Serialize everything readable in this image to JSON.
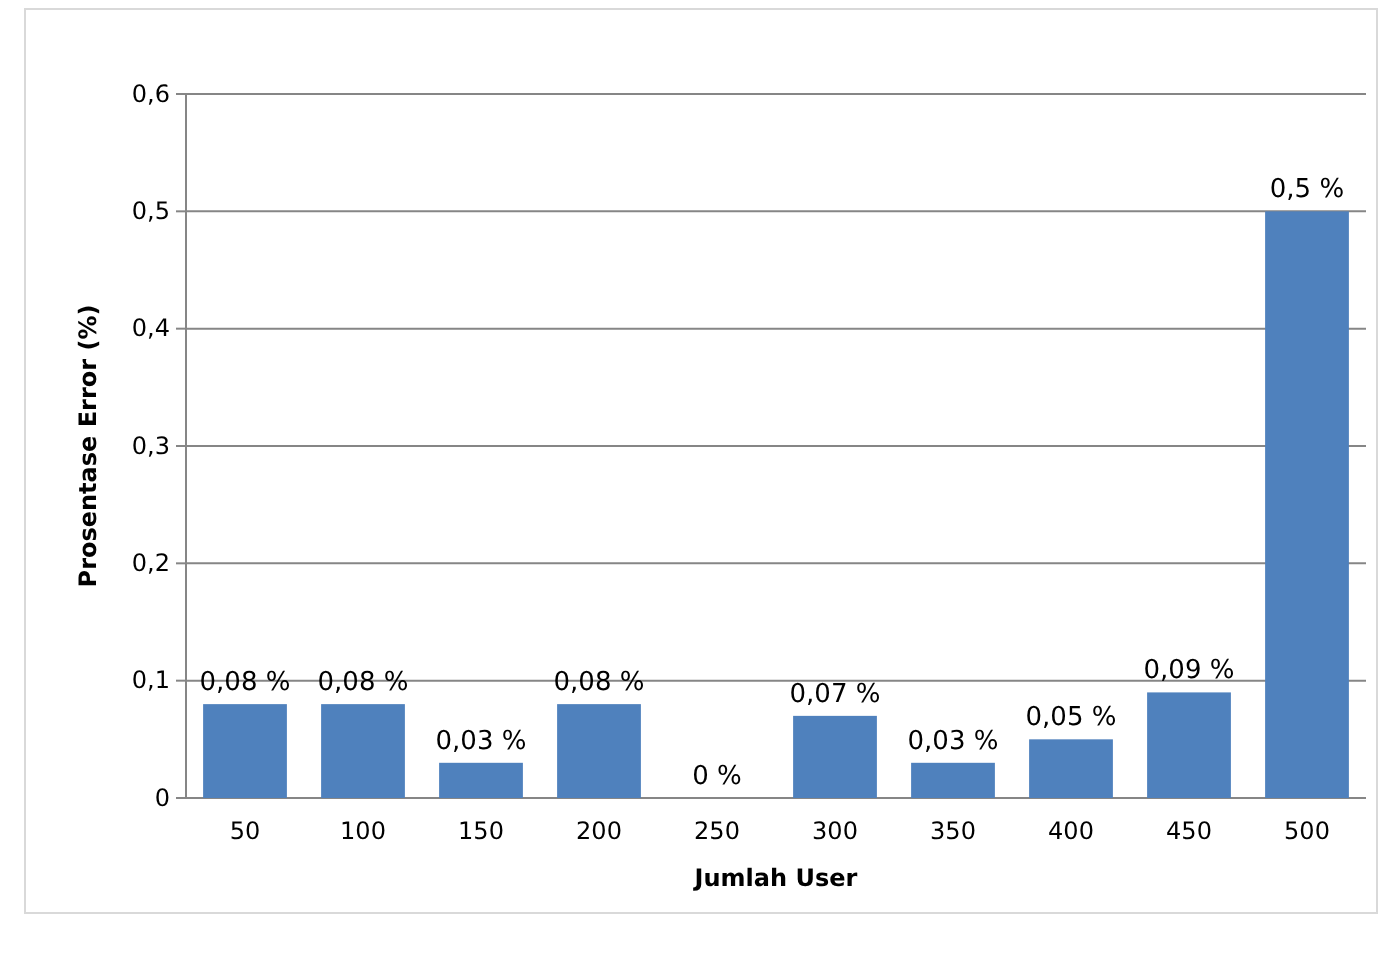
{
  "chart_data": {
    "type": "bar",
    "xlabel": "Jumlah User",
    "ylabel": "Prosentase Error (%)",
    "categories": [
      "50",
      "100",
      "150",
      "200",
      "250",
      "300",
      "350",
      "400",
      "450",
      "500"
    ],
    "values": [
      0.08,
      0.08,
      0.03,
      0.08,
      0,
      0.07,
      0.03,
      0.05,
      0.09,
      0.5
    ],
    "value_labels": [
      "0,08 %",
      "0,08 %",
      "0,03 %",
      "0,08 %",
      "0 %",
      "0,07 %",
      "0,03 %",
      "0,05 %",
      "0,09 %",
      "0,5 %"
    ],
    "color": "#4f81bd",
    "ylim": [
      0,
      0.6
    ],
    "yticks": [
      0,
      {
        "value": 0.1,
        "label": "0,1"
      },
      {
        "value": 0.2,
        "label": "0,2"
      },
      {
        "value": 0.3,
        "label": "0,3"
      },
      {
        "value": 0.4,
        "label": "0,4"
      },
      {
        "value": 0.5,
        "label": "0,5"
      },
      {
        "value": 0.6,
        "label": "0,6"
      }
    ],
    "grid": "y"
  }
}
